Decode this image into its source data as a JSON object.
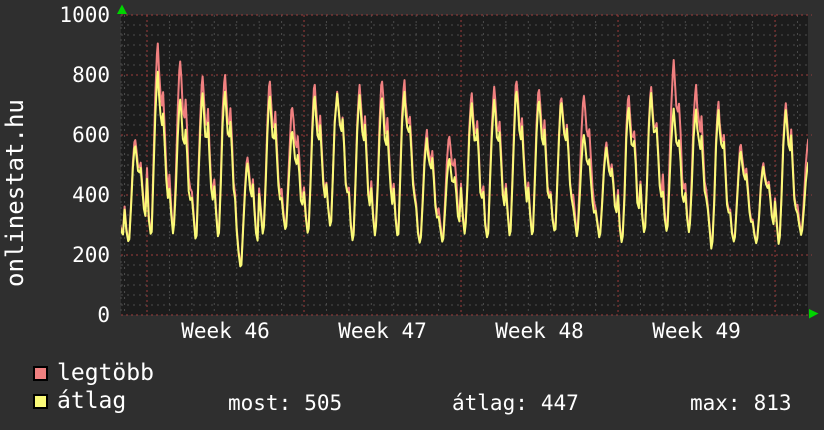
{
  "title": "onlinestat.hu",
  "colors": {
    "background": "#2f2f2f",
    "plot_background": "#1c1c1c",
    "text": "#ffffff",
    "grid_major": "#9e3b3b",
    "grid_minor": "#4b4b4b",
    "axis_arrow": "#00d400",
    "series_legtobb": "#f08080",
    "series_atlag": "#fafa78"
  },
  "chart_data": {
    "type": "line",
    "title": "onlinestat.hu",
    "ylim": [
      0,
      1000
    ],
    "y_major_ticks": [
      0,
      200,
      400,
      600,
      800,
      1000
    ],
    "y_minor_step": 33.33,
    "x_axis": {
      "tick_labels": [
        "Week 46",
        "Week 47",
        "Week 48",
        "Week 49"
      ],
      "week_start_day_indices": [
        2,
        9,
        16,
        23,
        30
      ],
      "minor_grid": "daily",
      "major_grid": "weekly",
      "days_visible": 31
    },
    "grid": {
      "style": "dotted",
      "major_color": "#9e3b3b",
      "minor_color": "#4b4b4b"
    },
    "legend_position": "bottom-left",
    "series": [
      {
        "name": "legtöbb",
        "color": "#f08080",
        "daily_peaks": [
          350,
          583,
          905,
          845,
          795,
          800,
          525,
          778,
          690,
          767,
          744,
          767,
          778,
          783,
          617,
          594,
          739,
          761,
          778,
          750,
          722,
          730,
          575,
          730,
          760,
          850,
          767,
          711,
          567,
          506,
          706,
          585
        ]
      },
      {
        "name": "átlag",
        "color": "#fafa78",
        "daily_peaks": [
          340,
          562,
          811,
          718,
          739,
          744,
          505,
          728,
          610,
          728,
          738,
          733,
          722,
          744,
          589,
          520,
          706,
          717,
          744,
          711,
          706,
          600,
          558,
          690,
          740,
          688,
          685,
          683,
          544,
          494,
          683,
          508
        ]
      }
    ],
    "nightly_troughs": [
      245,
      245,
      265,
      268,
      250,
      258,
      160,
      267,
      285,
      270,
      294,
      244,
      261,
      261,
      239,
      244,
      267,
      255,
      261,
      265,
      278,
      261,
      258,
      239,
      272,
      277,
      273,
      217,
      244,
      239,
      233,
      267
    ],
    "summary_stats": {
      "most": 505,
      "atlag": 447,
      "max": 813
    }
  },
  "legend": {
    "items": [
      {
        "label": "legtöbb",
        "color": "#f08080"
      },
      {
        "label": "átlag",
        "color": "#fafa78"
      }
    ]
  },
  "stats": {
    "items": [
      {
        "label": "most:",
        "value": "505"
      },
      {
        "label": "átlag:",
        "value": "447"
      },
      {
        "label": "max:",
        "value": "813"
      }
    ]
  }
}
